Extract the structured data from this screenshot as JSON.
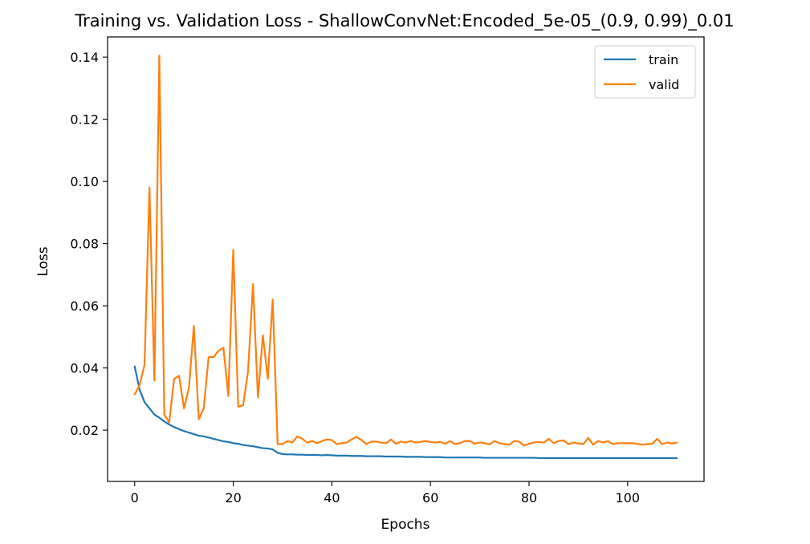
{
  "chart_data": {
    "type": "line",
    "title": "Training vs. Validation Loss - ShallowConvNet:Encoded_5e-05_(0.9, 0.99)_0.01",
    "xlabel": "Epochs",
    "ylabel": "Loss",
    "xlim": [
      -5.5,
      115.5
    ],
    "ylim": [
      0.0035,
      0.1465
    ],
    "xticks": [
      0,
      20,
      40,
      60,
      80,
      100
    ],
    "xtick_labels": [
      "0",
      "20",
      "40",
      "60",
      "80",
      "100"
    ],
    "yticks": [
      0.02,
      0.04,
      0.06,
      0.08,
      0.1,
      0.12,
      0.14
    ],
    "ytick_labels": [
      "0.02",
      "0.04",
      "0.06",
      "0.08",
      "0.10",
      "0.12",
      "0.14"
    ],
    "grid": false,
    "legend_position": "top-right",
    "x": [
      0,
      1,
      2,
      3,
      4,
      5,
      6,
      7,
      8,
      9,
      10,
      11,
      12,
      13,
      14,
      15,
      16,
      17,
      18,
      19,
      20,
      21,
      22,
      23,
      24,
      25,
      26,
      27,
      28,
      29,
      30,
      31,
      32,
      33,
      34,
      35,
      36,
      37,
      38,
      39,
      40,
      41,
      42,
      43,
      44,
      45,
      46,
      47,
      48,
      49,
      50,
      51,
      52,
      53,
      54,
      55,
      56,
      57,
      58,
      59,
      60,
      61,
      62,
      63,
      64,
      65,
      66,
      67,
      68,
      69,
      70,
      71,
      72,
      73,
      74,
      75,
      76,
      77,
      78,
      79,
      80,
      81,
      82,
      83,
      84,
      85,
      86,
      87,
      88,
      89,
      90,
      91,
      92,
      93,
      94,
      95,
      96,
      97,
      98,
      99,
      100,
      101,
      102,
      103,
      104,
      105,
      106,
      107,
      108,
      109,
      110
    ],
    "series": [
      {
        "name": "train",
        "color": "#1f77b4",
        "values": [
          0.0405,
          0.033,
          0.029,
          0.027,
          0.025,
          0.024,
          0.0228,
          0.0218,
          0.021,
          0.0203,
          0.0197,
          0.0192,
          0.0187,
          0.0182,
          0.018,
          0.0176,
          0.0172,
          0.0168,
          0.0164,
          0.0162,
          0.0158,
          0.0156,
          0.0152,
          0.015,
          0.0148,
          0.0145,
          0.0142,
          0.0141,
          0.0138,
          0.0127,
          0.0123,
          0.0122,
          0.0122,
          0.0121,
          0.0121,
          0.012,
          0.012,
          0.012,
          0.0119,
          0.012,
          0.0119,
          0.0118,
          0.0118,
          0.0118,
          0.0117,
          0.0117,
          0.0117,
          0.0116,
          0.0116,
          0.0116,
          0.0116,
          0.0115,
          0.0115,
          0.0115,
          0.0115,
          0.0114,
          0.0114,
          0.0114,
          0.0114,
          0.0113,
          0.0113,
          0.0113,
          0.0113,
          0.0112,
          0.0112,
          0.0112,
          0.0112,
          0.0112,
          0.0112,
          0.0112,
          0.0112,
          0.0111,
          0.0111,
          0.0111,
          0.0111,
          0.0111,
          0.0111,
          0.0111,
          0.0111,
          0.0111,
          0.0111,
          0.0111,
          0.011,
          0.011,
          0.011,
          0.011,
          0.011,
          0.011,
          0.011,
          0.011,
          0.011,
          0.011,
          0.011,
          0.011,
          0.011,
          0.011,
          0.011,
          0.011,
          0.011,
          0.011,
          0.011,
          0.011,
          0.011,
          0.011,
          0.011,
          0.011,
          0.011,
          0.011,
          0.011,
          0.011,
          0.011
        ]
      },
      {
        "name": "valid",
        "color": "#ff7f0e",
        "values": [
          0.0315,
          0.0345,
          0.041,
          0.098,
          0.036,
          0.1405,
          0.025,
          0.0225,
          0.0365,
          0.0375,
          0.027,
          0.0335,
          0.0535,
          0.0235,
          0.027,
          0.0435,
          0.0435,
          0.0455,
          0.0465,
          0.031,
          0.078,
          0.0275,
          0.028,
          0.039,
          0.067,
          0.0305,
          0.0505,
          0.0365,
          0.062,
          0.0155,
          0.0155,
          0.0165,
          0.016,
          0.018,
          0.0172,
          0.016,
          0.0165,
          0.0158,
          0.0165,
          0.017,
          0.0168,
          0.0155,
          0.0158,
          0.016,
          0.017,
          0.0178,
          0.0168,
          0.0155,
          0.0163,
          0.0163,
          0.016,
          0.0158,
          0.017,
          0.0156,
          0.0163,
          0.016,
          0.0165,
          0.016,
          0.0162,
          0.0165,
          0.0162,
          0.016,
          0.0162,
          0.0156,
          0.0165,
          0.0155,
          0.0158,
          0.0165,
          0.0165,
          0.0156,
          0.016,
          0.0158,
          0.0154,
          0.0165,
          0.0158,
          0.0155,
          0.0153,
          0.0165,
          0.0163,
          0.015,
          0.0156,
          0.016,
          0.0162,
          0.016,
          0.0172,
          0.0158,
          0.0165,
          0.0167,
          0.0155,
          0.016,
          0.0157,
          0.0155,
          0.0175,
          0.0153,
          0.0165,
          0.016,
          0.0165,
          0.0155,
          0.0158,
          0.0158,
          0.0158,
          0.0158,
          0.0156,
          0.0153,
          0.0155,
          0.0156,
          0.0172,
          0.0155,
          0.016,
          0.0157,
          0.016
        ]
      }
    ]
  }
}
